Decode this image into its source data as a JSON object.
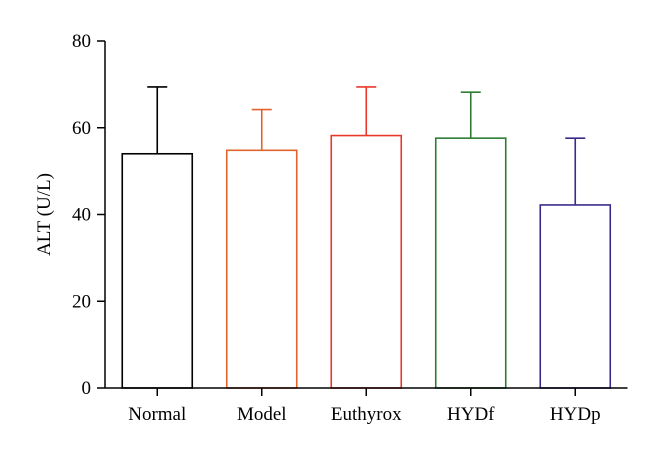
{
  "chart_data": {
    "type": "bar",
    "title": "",
    "xlabel": "",
    "ylabel": "ALT (U/L)",
    "ylim": [
      0,
      80
    ],
    "yticks": [
      0,
      20,
      40,
      60,
      80
    ],
    "grid": false,
    "legend": "none",
    "categories": [
      "Normal",
      "Model",
      "Euthyrox",
      "HYDf",
      "HYDp"
    ],
    "series": [
      {
        "values": [
          54,
          54.8,
          58.2,
          57.6,
          42.2
        ],
        "error_upper": [
          15.4,
          9.4,
          11.2,
          10.6,
          15.4
        ],
        "colors": [
          "#000000",
          "#e0642c",
          "#e8382a",
          "#2e7d32",
          "#3a2a8c"
        ]
      }
    ]
  }
}
